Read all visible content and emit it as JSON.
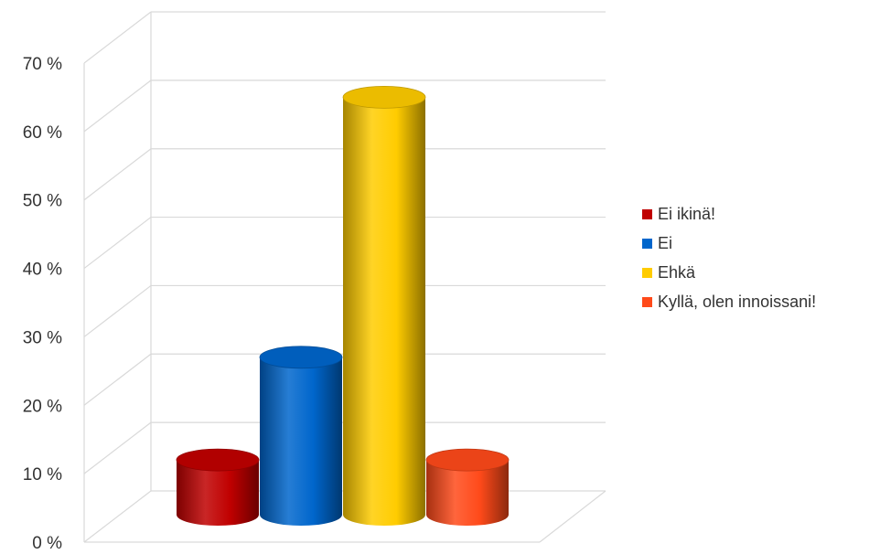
{
  "chart_data": {
    "type": "bar",
    "style": "3d-cylinder",
    "categories": [
      "Ei ikinä!",
      "Ei",
      "Ehkä",
      "Kyllä, olen innoissani!"
    ],
    "values": [
      8,
      23,
      61,
      8
    ],
    "unit": "%",
    "colors": [
      "#c00000",
      "#0066cc",
      "#ffcc00",
      "#ff4a1a"
    ],
    "ylim": [
      0,
      70
    ],
    "yticks": [
      "0 %",
      "10 %",
      "20 %",
      "30 %",
      "40 %",
      "50 %",
      "60 %",
      "70 %"
    ],
    "grid": true,
    "legend_position": "right",
    "title": "",
    "xlabel": "",
    "ylabel": ""
  }
}
